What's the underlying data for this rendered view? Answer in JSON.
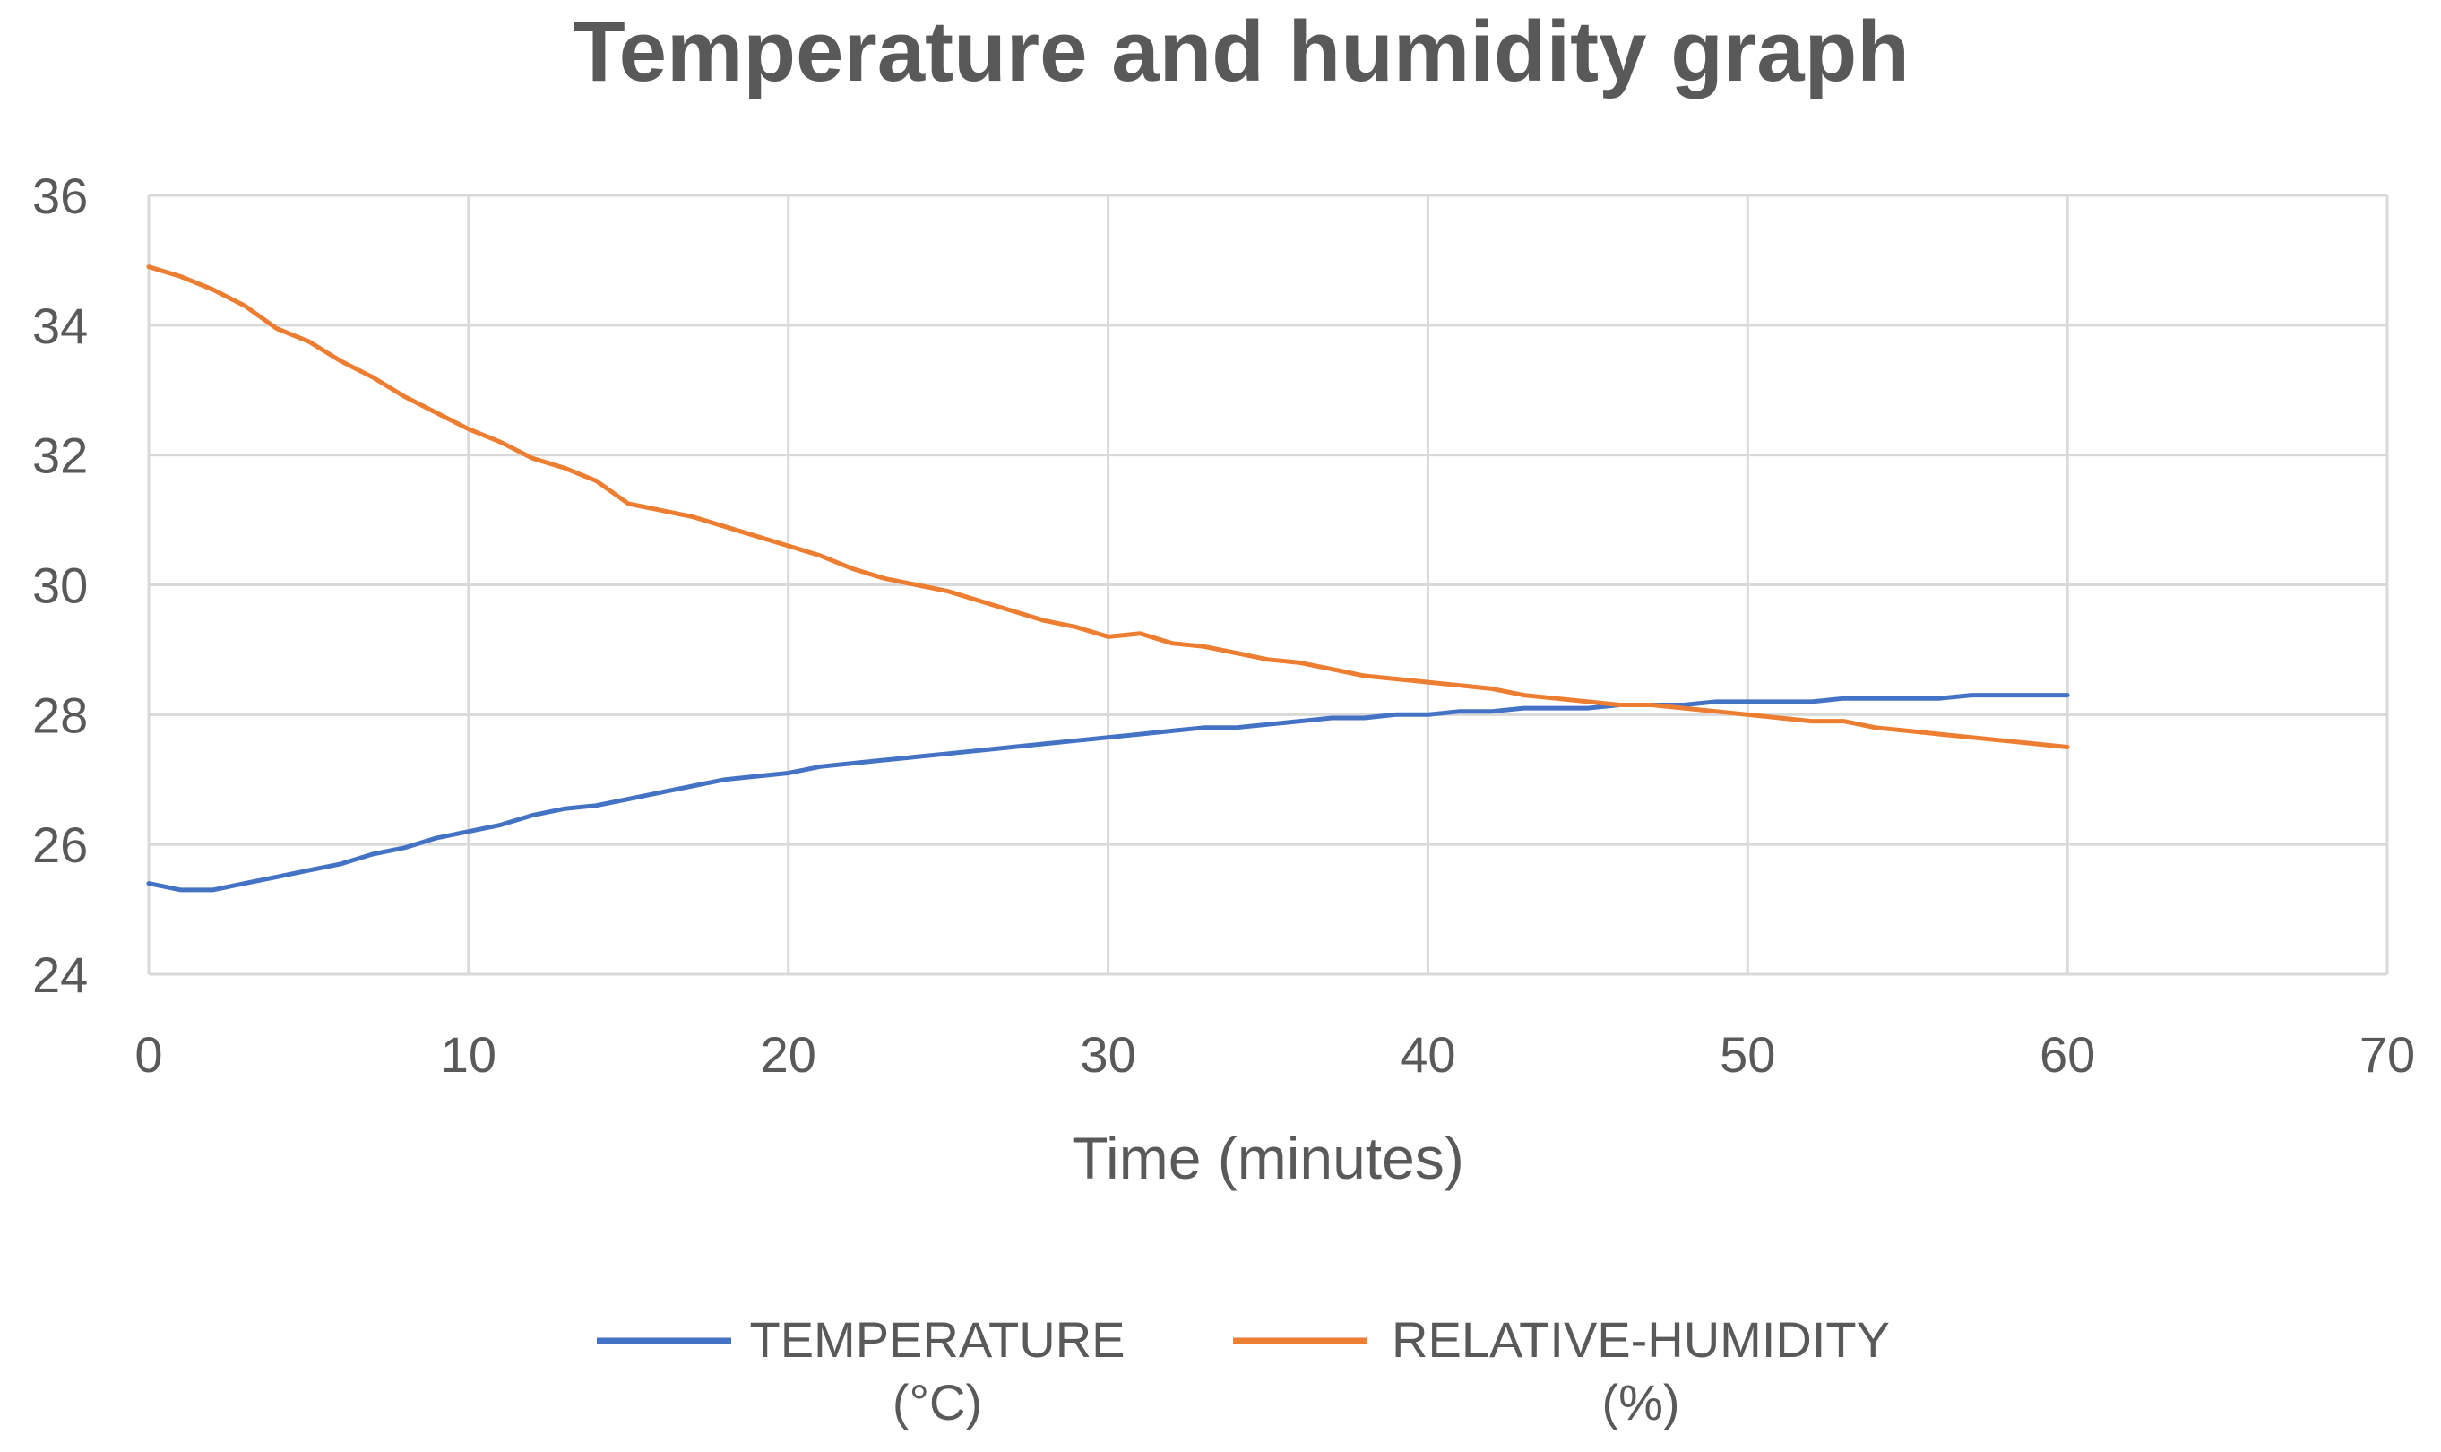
{
  "chart_data": {
    "type": "line",
    "title": "Temperature and humidity graph",
    "xlabel": "Time (minutes)",
    "ylabel": "",
    "xlim": [
      0,
      70
    ],
    "ylim": [
      24,
      36
    ],
    "x_ticks": [
      0,
      10,
      20,
      30,
      40,
      50,
      60,
      70
    ],
    "y_ticks": [
      24,
      26,
      28,
      30,
      32,
      34,
      36
    ],
    "grid": true,
    "legend_position": "bottom",
    "x": [
      0,
      1,
      2,
      3,
      4,
      5,
      6,
      7,
      8,
      9,
      10,
      11,
      12,
      13,
      14,
      15,
      16,
      17,
      18,
      19,
      20,
      21,
      22,
      23,
      24,
      25,
      26,
      27,
      28,
      29,
      30,
      31,
      32,
      33,
      34,
      35,
      36,
      37,
      38,
      39,
      40,
      41,
      42,
      43,
      44,
      45,
      46,
      47,
      48,
      49,
      50,
      51,
      52,
      53,
      54,
      55,
      56,
      57,
      58,
      59,
      60
    ],
    "series": [
      {
        "name": "TEMPERATURE",
        "name_unit": "(°C)",
        "color": "#4472c4",
        "values": [
          25.4,
          25.3,
          25.3,
          25.4,
          25.5,
          25.6,
          25.7,
          25.85,
          25.95,
          26.1,
          26.2,
          26.3,
          26.45,
          26.55,
          26.6,
          26.7,
          26.8,
          26.9,
          27.0,
          27.05,
          27.1,
          27.2,
          27.25,
          27.3,
          27.35,
          27.4,
          27.45,
          27.5,
          27.55,
          27.6,
          27.65,
          27.7,
          27.75,
          27.8,
          27.8,
          27.85,
          27.9,
          27.95,
          27.95,
          28.0,
          28.0,
          28.05,
          28.05,
          28.1,
          28.1,
          28.1,
          28.15,
          28.15,
          28.15,
          28.2,
          28.2,
          28.2,
          28.2,
          28.25,
          28.25,
          28.25,
          28.25,
          28.3,
          28.3,
          28.3,
          28.3
        ]
      },
      {
        "name": "RELATIVE-HUMIDITY",
        "name_unit": "(%)",
        "color": "#ed7d31",
        "values": [
          34.9,
          34.75,
          34.55,
          34.3,
          33.95,
          33.75,
          33.45,
          33.2,
          32.9,
          32.65,
          32.4,
          32.2,
          31.95,
          31.8,
          31.6,
          31.25,
          31.15,
          31.05,
          30.9,
          30.75,
          30.6,
          30.45,
          30.25,
          30.1,
          30.0,
          29.9,
          29.75,
          29.6,
          29.45,
          29.35,
          29.2,
          29.25,
          29.1,
          29.05,
          28.95,
          28.85,
          28.8,
          28.7,
          28.6,
          28.55,
          28.5,
          28.45,
          28.4,
          28.3,
          28.25,
          28.2,
          28.15,
          28.15,
          28.1,
          28.05,
          28.0,
          27.95,
          27.9,
          27.9,
          27.8,
          27.75,
          27.7,
          27.65,
          27.6,
          27.55,
          27.5
        ]
      }
    ]
  }
}
